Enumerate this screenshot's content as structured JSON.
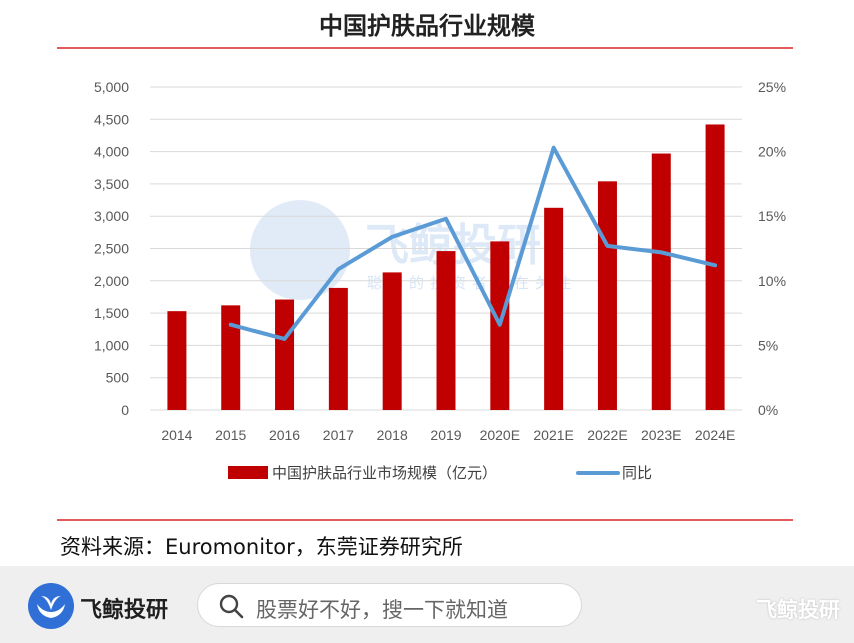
{
  "title": "中国护肤品行业规模",
  "source": "资料来源：Euromonitor，东莞证券研究所",
  "chart_data": {
    "type": "bar",
    "categories": [
      "2014",
      "2015",
      "2016",
      "2017",
      "2018",
      "2019",
      "2020E",
      "2021E",
      "2022E",
      "2023E",
      "2024E"
    ],
    "series": [
      {
        "name": "中国护肤品行业市场规模（亿元）",
        "type": "bar",
        "axis": "left",
        "color": "#c00000",
        "values": [
          1530,
          1620,
          1710,
          1890,
          2130,
          2460,
          2610,
          3130,
          3540,
          3970,
          4420
        ]
      },
      {
        "name": "同比",
        "type": "line",
        "axis": "right",
        "color": "#5b9bd5",
        "values": [
          null,
          6.6,
          5.5,
          10.9,
          13.4,
          14.8,
          6.6,
          20.3,
          12.7,
          12.2,
          11.2
        ]
      }
    ],
    "left_axis": {
      "ylim": [
        0,
        5000
      ],
      "ticks": [
        "0",
        "500",
        "1,000",
        "1,500",
        "2,000",
        "2,500",
        "3,000",
        "3,500",
        "4,000",
        "4,500",
        "5,000"
      ]
    },
    "right_axis": {
      "ylim": [
        0,
        25
      ],
      "ticks": [
        "0%",
        "5%",
        "10%",
        "15%",
        "20%",
        "25%"
      ]
    },
    "grid": true,
    "legend": "bottom"
  },
  "watermark": {
    "brand": "飞鲸投研",
    "slogan": "聪明的投资者都在关注"
  },
  "footer": {
    "brand": "飞鲸投研",
    "search_placeholder": "股票好不好，搜一下就知道",
    "watermark": "飞鲸投研"
  }
}
